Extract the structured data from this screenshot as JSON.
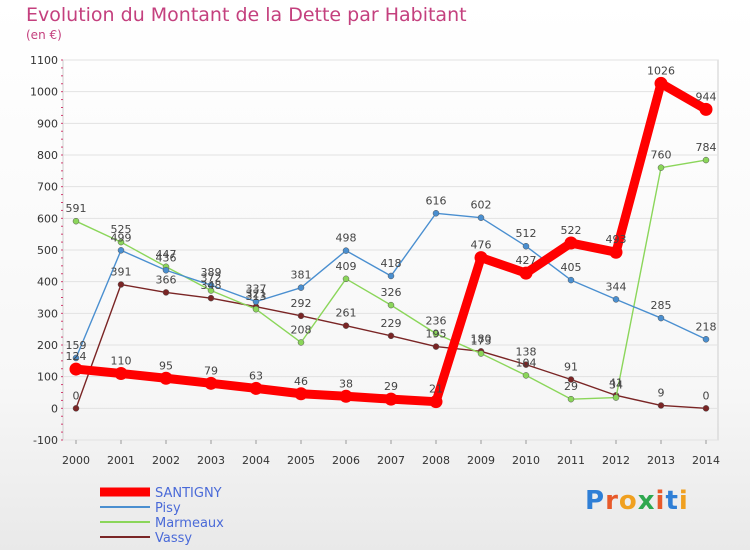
{
  "title": "Evolution du Montant de la Dette par Habitant",
  "subtitle": "(en €)",
  "logo": {
    "text": "Proxiti",
    "colors": [
      "#2f7fd6",
      "#e85a2a",
      "#f0a020",
      "#2fa84f",
      "#e85a2a",
      "#2f7fd6",
      "#f0a020"
    ]
  },
  "chart_data": {
    "type": "line",
    "title": "Evolution du Montant de la Dette par Habitant",
    "ylabel": "(en €)",
    "xlabel": "",
    "x": [
      "2000",
      "2001",
      "2002",
      "2003",
      "2004",
      "2005",
      "2006",
      "2007",
      "2008",
      "2009",
      "2010",
      "2011",
      "2012",
      "2013",
      "2014"
    ],
    "yticks": [
      -100,
      0,
      100,
      200,
      300,
      400,
      500,
      600,
      700,
      800,
      900,
      1000,
      1100
    ],
    "ylim": [
      -100,
      1100
    ],
    "grid": "horizontal",
    "legend_position": "bottom-left",
    "series": [
      {
        "name": "Vassy",
        "color": "#7a2525",
        "values": [
          0,
          391,
          366,
          348,
          321,
          292,
          261,
          229,
          195,
          180,
          138,
          91,
          41,
          9,
          0
        ],
        "labels": [
          "0",
          "391",
          "366",
          "348",
          "321",
          "292",
          "261",
          "229",
          "195",
          "180",
          "138",
          "91",
          "41",
          "9",
          "0"
        ]
      },
      {
        "name": "Marmeaux",
        "color": "#8bd65a",
        "values": [
          591,
          525,
          447,
          372,
          313,
          208,
          409,
          326,
          236,
          173,
          104,
          29,
          34,
          760,
          784
        ],
        "labels": [
          "591",
          "525",
          "447",
          "372",
          "313",
          "208",
          "409",
          "326",
          "236",
          "173",
          "104",
          "29",
          "34",
          "760",
          "784"
        ]
      },
      {
        "name": "Pisy",
        "color": "#4a8fd0",
        "values": [
          159,
          499,
          436,
          389,
          337,
          381,
          498,
          418,
          616,
          602,
          512,
          405,
          344,
          285,
          218
        ],
        "labels": [
          "159",
          "499",
          "436",
          "389",
          "337",
          "381",
          "498",
          "418",
          "616",
          "602",
          "512",
          "405",
          "344",
          "285",
          "218"
        ]
      },
      {
        "name": "SANTIGNY",
        "color": "#ff0000",
        "values": [
          124,
          110,
          95,
          79,
          63,
          46,
          38,
          29,
          21,
          476,
          427,
          522,
          493,
          1026,
          944
        ],
        "labels": [
          "124",
          "110",
          "95",
          "79",
          "63",
          "46",
          "38",
          "29",
          "21",
          "476",
          "427",
          "522",
          "493",
          "1026",
          "944"
        ]
      }
    ]
  },
  "legend": [
    {
      "name": "SANTIGNY",
      "color": "#ff0000",
      "text_color": "#4a6ad8"
    },
    {
      "name": "Pisy",
      "color": "#4a8fd0",
      "text_color": "#4a6ad8"
    },
    {
      "name": "Marmeaux",
      "color": "#8bd65a",
      "text_color": "#4a6ad8"
    },
    {
      "name": "Vassy",
      "color": "#7a2525",
      "text_color": "#4a6ad8"
    }
  ]
}
